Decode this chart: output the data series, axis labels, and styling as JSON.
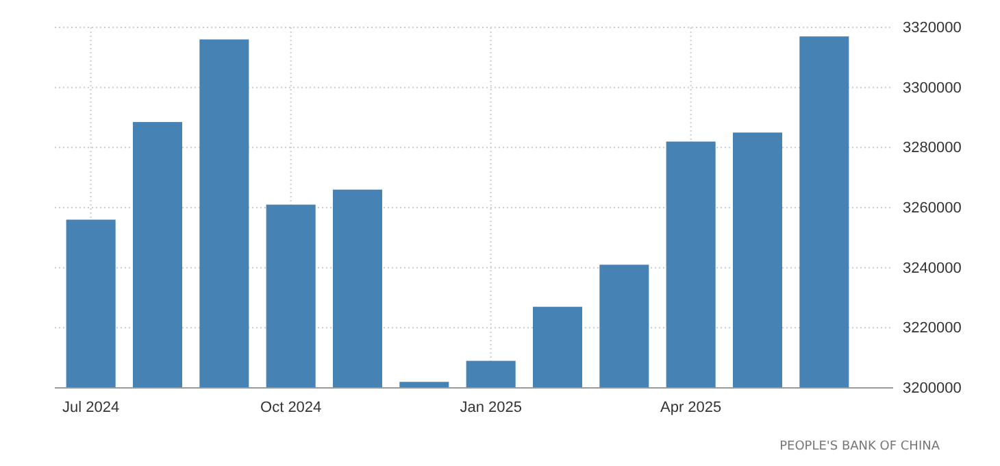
{
  "chart_data": {
    "type": "bar",
    "categories": [
      "Jul 2024",
      null,
      null,
      "Oct 2024",
      null,
      null,
      "Jan 2025",
      null,
      null,
      "Apr 2025",
      null,
      null
    ],
    "values": [
      3256000,
      3288500,
      3316000,
      3261000,
      3266000,
      3202000,
      3209000,
      3227000,
      3241000,
      3282000,
      3285000,
      3317000
    ],
    "color": "#4682b4",
    "ylim": [
      3200000,
      3320000
    ],
    "yticks": [
      3200000,
      3220000,
      3240000,
      3260000,
      3280000,
      3300000,
      3320000
    ],
    "grid": true,
    "annotations": [
      "PEOPLE'S BANK OF CHINA"
    ]
  }
}
